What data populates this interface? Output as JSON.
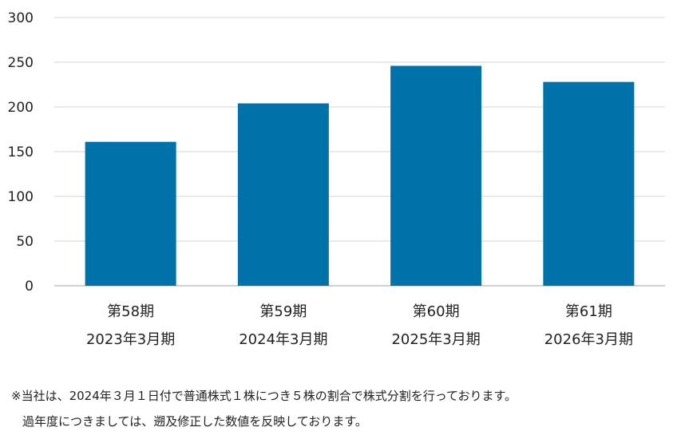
{
  "chart_data": {
    "type": "bar",
    "title": "",
    "xlabel": "",
    "ylabel": "",
    "categories": [
      [
        "第58期",
        "2023年3月期"
      ],
      [
        "第59期",
        "2024年3月期"
      ],
      [
        "第60期",
        "2025年3月期"
      ],
      [
        "第61期",
        "2026年3月期"
      ]
    ],
    "values": [
      161,
      204,
      246,
      228
    ],
    "ylim": [
      0,
      300
    ],
    "yticks": [
      "0",
      "50",
      "100",
      "150",
      "200",
      "250",
      "300"
    ],
    "grid": true,
    "legend": "none",
    "bar_color": "#0072AA",
    "grid_color": "#D4D4D4"
  },
  "notes": [
    "※当社は、2024年３月１日付で普通株式１株につき５株の割合で株式分割を行っております。",
    "過年度につきましては、遡及修正した数値を反映しております。"
  ]
}
